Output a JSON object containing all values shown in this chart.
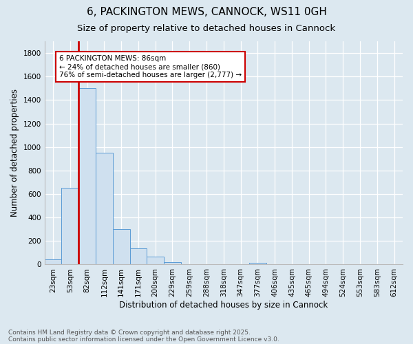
{
  "title": "6, PACKINGTON MEWS, CANNOCK, WS11 0GH",
  "subtitle": "Size of property relative to detached houses in Cannock",
  "xlabel": "Distribution of detached houses by size in Cannock",
  "ylabel": "Number of detached properties",
  "footnote1": "Contains HM Land Registry data © Crown copyright and database right 2025.",
  "footnote2": "Contains public sector information licensed under the Open Government Licence v3.0.",
  "bin_labels": [
    "23sqm",
    "53sqm",
    "82sqm",
    "112sqm",
    "141sqm",
    "171sqm",
    "200sqm",
    "229sqm",
    "259sqm",
    "288sqm",
    "318sqm",
    "347sqm",
    "377sqm",
    "406sqm",
    "435sqm",
    "465sqm",
    "494sqm",
    "524sqm",
    "553sqm",
    "583sqm",
    "612sqm"
  ],
  "bar_heights": [
    45,
    650,
    1500,
    950,
    300,
    135,
    65,
    22,
    5,
    0,
    0,
    0,
    15,
    0,
    0,
    0,
    0,
    0,
    0,
    0,
    0
  ],
  "bar_color": "#cfe0ef",
  "bar_edge_color": "#5b9bd5",
  "highlight_bar_index": 2,
  "highlight_line_color": "#cc0000",
  "background_color": "#dce8f0",
  "plot_bg_color": "#dce8f0",
  "annotation_text": "6 PACKINGTON MEWS: 86sqm\n← 24% of detached houses are smaller (860)\n76% of semi-detached houses are larger (2,777) →",
  "annotation_box_edge": "#cc0000",
  "annotation_box_face": "#ffffff",
  "ylim": [
    0,
    1900
  ],
  "yticks": [
    0,
    200,
    400,
    600,
    800,
    1000,
    1200,
    1400,
    1600,
    1800
  ],
  "title_fontsize": 11,
  "subtitle_fontsize": 9.5,
  "label_fontsize": 8.5,
  "tick_fontsize": 7.5,
  "annot_fontsize": 7.5,
  "footnote_fontsize": 6.5
}
